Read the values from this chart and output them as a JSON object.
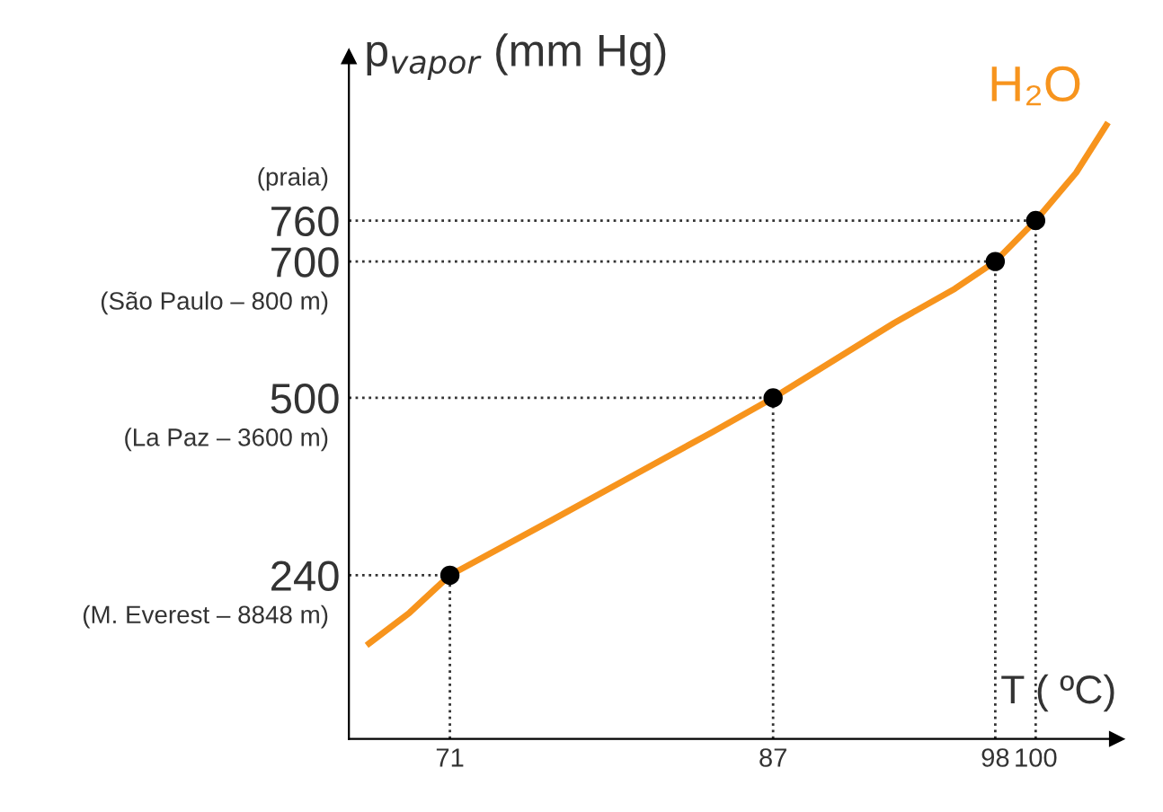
{
  "chart_data": {
    "type": "line",
    "xlabel": "T ( ºC)",
    "ylabel": "p$_{vapor}$ (mm Hg)",
    "xlim": [
      66,
      104
    ],
    "ylim": [
      0,
      1000
    ],
    "xticks": [
      71,
      87,
      98,
      100
    ],
    "yticks": [
      240,
      500,
      700,
      760
    ],
    "grid": false,
    "legend": false,
    "ref_lines": [
      {
        "axis": "y",
        "value": 240,
        "color": "#333333",
        "line_style": "dotted"
      },
      {
        "axis": "y",
        "value": 500,
        "color": "#333333",
        "line_style": "dotted"
      },
      {
        "axis": "y",
        "value": 700,
        "color": "#333333",
        "line_style": "dotted"
      },
      {
        "axis": "y",
        "value": 760,
        "color": "#333333",
        "line_style": "dotted"
      },
      {
        "axis": "x",
        "value": 71,
        "color": "#333333",
        "line_style": "dotted"
      },
      {
        "axis": "x",
        "value": 87,
        "color": "#333333",
        "line_style": "dotted"
      },
      {
        "axis": "x",
        "value": 98,
        "color": "#333333",
        "line_style": "dotted"
      },
      {
        "axis": "x",
        "value": 100,
        "color": "#333333",
        "line_style": "dotted"
      }
    ],
    "series": [
      {
        "name": "H₂O",
        "color": "#f7941d",
        "x": [
          67,
          69,
          71,
          76,
          80,
          84,
          87,
          90,
          93,
          96,
          98,
          100,
          102,
          103.5
        ],
        "values": [
          140,
          185,
          240,
          320,
          385,
          450,
          500,
          555,
          610,
          660,
          700,
          760,
          830,
          900
        ]
      },
      {
        "type": "scatter",
        "color": "#000000",
        "marker": "circle",
        "x": [
          71,
          87,
          98,
          100
        ],
        "values": [
          240,
          500,
          700,
          760
        ]
      }
    ],
    "annotations": [
      "(praia)",
      "(São Paulo – 800 m)",
      "(La Paz – 3600 m)",
      "(M. Everest – 8848 m)"
    ]
  }
}
